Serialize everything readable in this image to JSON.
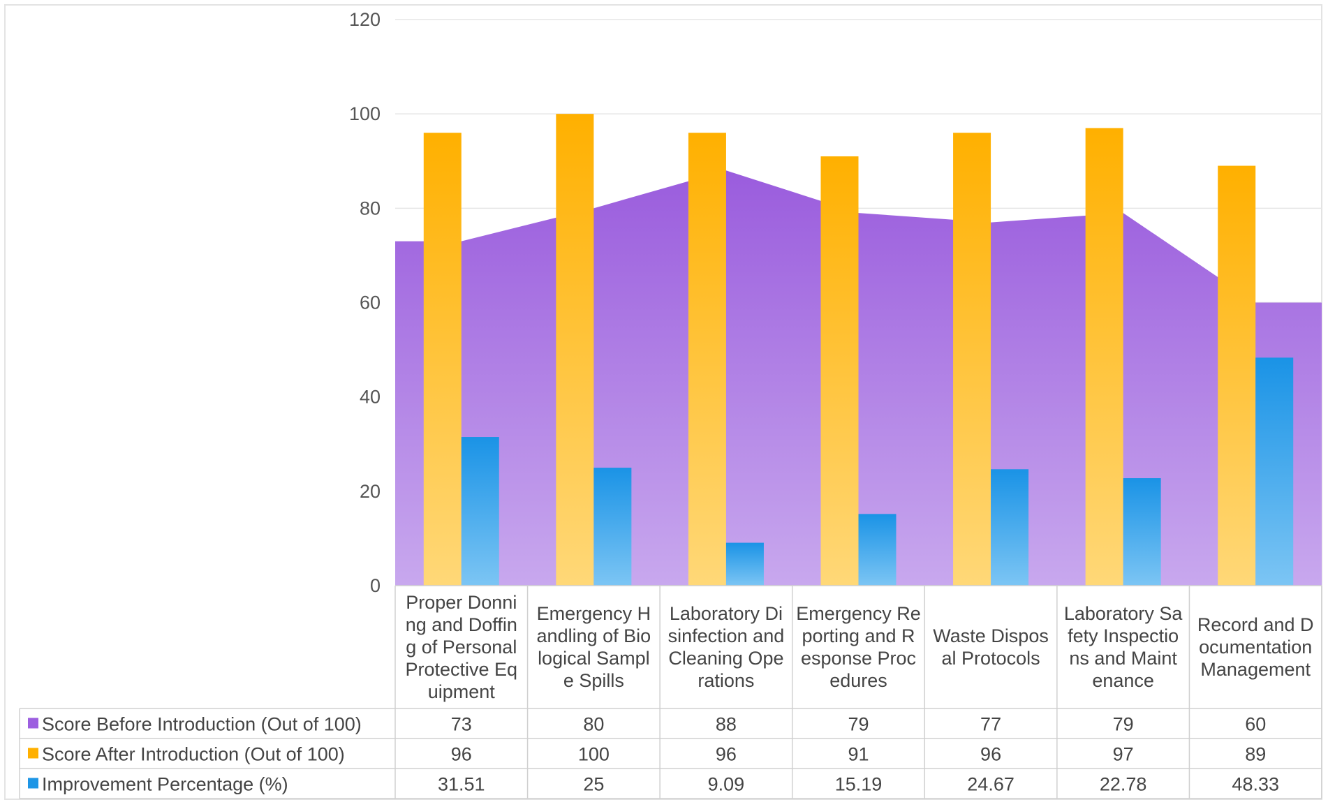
{
  "chart_data": {
    "type": "bar",
    "title": "",
    "xlabel": "",
    "ylabel": "",
    "ylim": [
      0,
      120
    ],
    "yticks": [
      0,
      20,
      40,
      60,
      80,
      100,
      120
    ],
    "grid": true,
    "legend_position": "data-table-left",
    "categories": [
      "Proper Donning and Doffing of Personal Protective Equipment",
      "Emergency Handling of Biological Sample Spills",
      "Laboratory Disinfection and Cleaning Operations",
      "Emergency Reporting and Response Procedures",
      "Waste Disposal Protocols",
      "Laboratory Safety Inspections and Maintenance",
      "Record and Documentation Management"
    ],
    "category_lines": [
      [
        "Proper Donni",
        "ng and Doffin",
        "g of Personal",
        "Protective Eq",
        "uipment"
      ],
      [
        "Emergency H",
        "andling of Bio",
        "logical Sampl",
        "e Spills"
      ],
      [
        "Laboratory Di",
        "sinfection and",
        "Cleaning Ope",
        "rations"
      ],
      [
        "Emergency Re",
        "porting and R",
        "esponse Proc",
        "edures"
      ],
      [
        "Waste Dispos",
        "al Protocols"
      ],
      [
        "Laboratory Sa",
        "fety Inspectio",
        "ns and Maint",
        "enance"
      ],
      [
        "Record and D",
        "ocumentation",
        "Management"
      ]
    ],
    "series": [
      {
        "name": "Score Before Introduction (Out of 100)",
        "kind": "area",
        "color": "#9c5fe0",
        "values": [
          73,
          80,
          88,
          79,
          77,
          79,
          60
        ],
        "labels": [
          "73",
          "80",
          "88",
          "79",
          "77",
          "79",
          "60"
        ]
      },
      {
        "name": "Score After Introduction (Out of 100)",
        "kind": "bar",
        "color": "#ffb000",
        "values": [
          96,
          100,
          96,
          91,
          96,
          97,
          89
        ],
        "labels": [
          "96",
          "100",
          "96",
          "91",
          "96",
          "97",
          "89"
        ]
      },
      {
        "name": "Improvement Percentage (%)",
        "kind": "bar",
        "color": "#1e96e6",
        "values": [
          31.51,
          25,
          9.09,
          15.19,
          24.67,
          22.78,
          48.33
        ],
        "labels": [
          "31.51",
          "25",
          "9.09",
          "15.19",
          "24.67",
          "22.78",
          "48.33"
        ]
      }
    ]
  }
}
